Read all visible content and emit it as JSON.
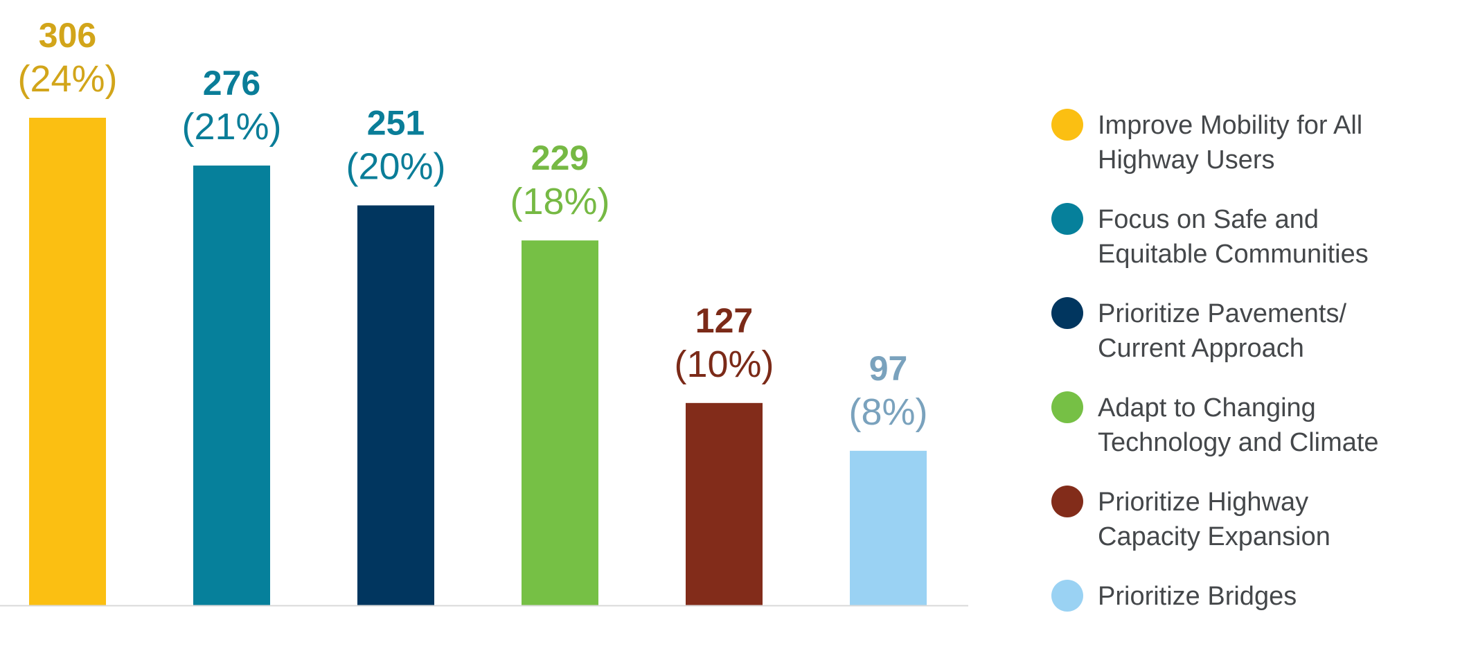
{
  "chart_data": {
    "type": "bar",
    "categories": [
      "Improve Mobility for All Highway Users",
      "Focus on Safe and Equitable Communities",
      "Prioritize Pavements/ Current Approach",
      "Adapt to Changing Technology and Climate",
      "Prioritize Highway Capacity Expansion",
      "Prioritize Bridges"
    ],
    "values": [
      306,
      276,
      251,
      229,
      127,
      97
    ],
    "value_labels": [
      "306",
      "276",
      "251",
      "229",
      "127",
      "97"
    ],
    "percent_labels": [
      "(24%)",
      "(21%)",
      "(20%)",
      "(18%)",
      "(10%)",
      "(8%)"
    ],
    "bar_colors": [
      "#fbbf12",
      "#06809b",
      "#01365f",
      "#76c045",
      "#822c1a",
      "#9ad2f3"
    ],
    "label_colors": [
      "#d2a51a",
      "#0a7d98",
      "#0a7d98",
      "#76b944",
      "#7b2a18",
      "#7aa2bd"
    ],
    "legend": {
      "position": "right",
      "items": [
        {
          "lines": [
            "Improve Mobility for All",
            "Highway Users"
          ],
          "color": "#fbbf12"
        },
        {
          "lines": [
            "Focus on Safe and",
            "Equitable Communities"
          ],
          "color": "#06809b"
        },
        {
          "lines": [
            "Prioritize Pavements/",
            "Current Approach"
          ],
          "color": "#01365f"
        },
        {
          "lines": [
            "Adapt to Changing",
            "Technology and Climate"
          ],
          "color": "#76c045"
        },
        {
          "lines": [
            "Prioritize Highway",
            "Capacity Expansion"
          ],
          "color": "#822c1a"
        },
        {
          "lines": [
            "Prioritize Bridges"
          ],
          "color": "#9ad2f3"
        }
      ]
    },
    "ylim": [
      0,
      306
    ],
    "grid": false,
    "axis_color": "#d9d9d9"
  }
}
